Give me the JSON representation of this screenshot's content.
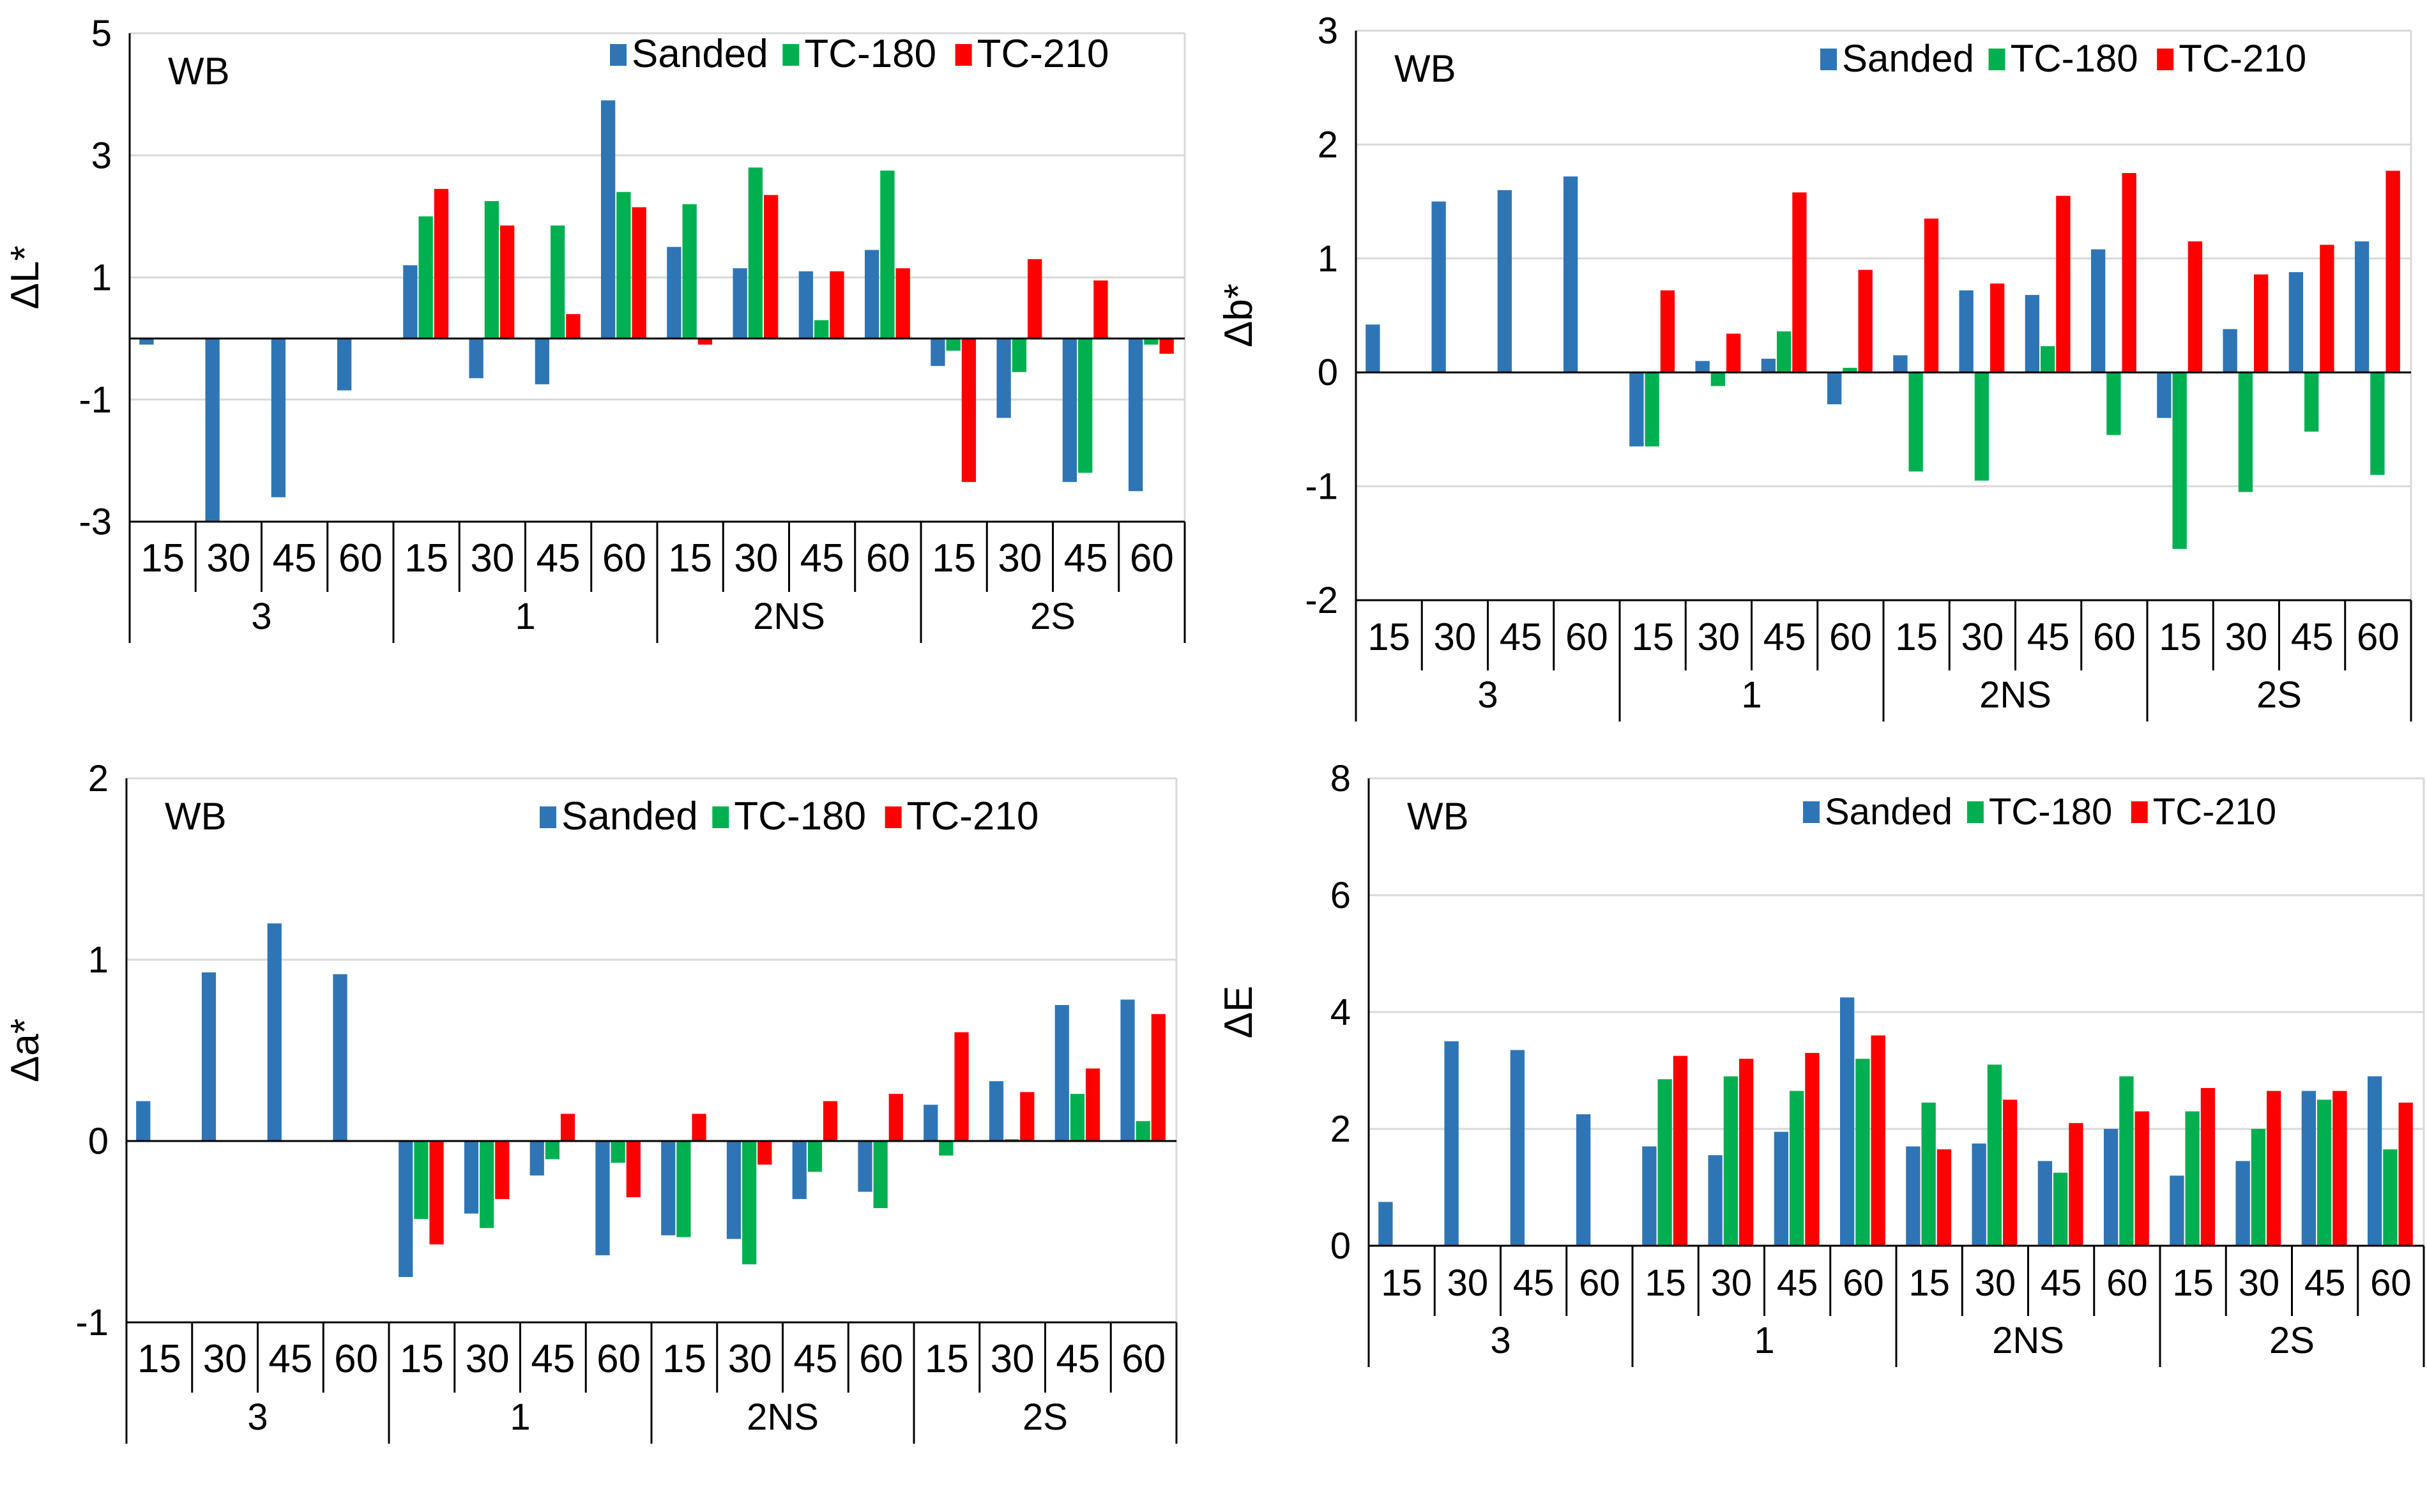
{
  "legend_labels": [
    "Sanded",
    "TC-180",
    "TC-210"
  ],
  "colors": {
    "Sanded": "#2E75B6",
    "TC-180": "#00B050",
    "TC-210": "#FF0000",
    "grid": "#D9D9D9",
    "axis": "#000000"
  },
  "chart_data": [
    {
      "type": "bar",
      "panel": "top-left",
      "title": "WB",
      "ylabel": "ΔL*",
      "ylim": [
        -3,
        5
      ],
      "yticks": [
        -3,
        -1,
        1,
        3,
        5
      ],
      "legend": "top-right",
      "groups": [
        "3",
        "1",
        "2NS",
        "2S"
      ],
      "subcategories": [
        "15",
        "30",
        "45",
        "60"
      ],
      "series": [
        {
          "name": "Sanded",
          "values": [
            -0.1,
            -3.0,
            -2.6,
            -0.85,
            1.2,
            -0.65,
            -0.75,
            3.9,
            1.5,
            1.15,
            1.1,
            1.45,
            -0.45,
            -1.3,
            -2.35,
            -2.5
          ]
        },
        {
          "name": "TC-180",
          "values": [
            null,
            null,
            null,
            null,
            2.0,
            2.25,
            1.85,
            2.4,
            2.2,
            2.8,
            0.3,
            2.75,
            -0.2,
            -0.55,
            -2.2,
            -0.1
          ]
        },
        {
          "name": "TC-210",
          "values": [
            null,
            null,
            null,
            null,
            2.45,
            1.85,
            0.4,
            2.15,
            -0.1,
            2.35,
            1.1,
            1.15,
            -2.35,
            1.3,
            0.95,
            -0.25
          ]
        }
      ]
    },
    {
      "type": "bar",
      "panel": "top-right",
      "title": "WB",
      "ylabel": "Δb*",
      "ylim": [
        -2,
        3
      ],
      "yticks": [
        -2,
        -1,
        0,
        1,
        2,
        3
      ],
      "legend": "top-right",
      "groups": [
        "3",
        "1",
        "2NS",
        "2S"
      ],
      "subcategories": [
        "15",
        "30",
        "45",
        "60"
      ],
      "series": [
        {
          "name": "Sanded",
          "values": [
            0.42,
            1.5,
            1.6,
            1.72,
            -0.65,
            0.1,
            0.12,
            -0.28,
            0.15,
            0.72,
            0.68,
            1.08,
            -0.4,
            0.38,
            0.88,
            1.15
          ]
        },
        {
          "name": "TC-180",
          "values": [
            null,
            null,
            null,
            null,
            -0.65,
            -0.12,
            0.36,
            0.04,
            -0.87,
            -0.95,
            0.23,
            -0.55,
            -1.55,
            -1.05,
            -0.52,
            -0.9
          ]
        },
        {
          "name": "TC-210",
          "values": [
            null,
            null,
            null,
            null,
            0.72,
            0.34,
            1.58,
            0.9,
            1.35,
            0.78,
            1.55,
            1.75,
            1.15,
            0.86,
            1.12,
            1.77
          ]
        }
      ]
    },
    {
      "type": "bar",
      "panel": "bottom-left",
      "title": "WB",
      "ylabel": "Δa*",
      "ylim": [
        -1,
        2
      ],
      "yticks": [
        -1,
        0,
        1,
        2
      ],
      "legend": "top-right",
      "groups": [
        "3",
        "1",
        "2NS",
        "2S"
      ],
      "subcategories": [
        "15",
        "30",
        "45",
        "60"
      ],
      "series": [
        {
          "name": "Sanded",
          "values": [
            0.22,
            0.93,
            1.2,
            0.92,
            -0.75,
            -0.4,
            -0.19,
            -0.63,
            -0.52,
            -0.54,
            -0.32,
            -0.28,
            0.2,
            0.33,
            0.75,
            0.78
          ]
        },
        {
          "name": "TC-180",
          "values": [
            null,
            null,
            null,
            null,
            -0.43,
            -0.48,
            -0.1,
            -0.12,
            -0.53,
            -0.68,
            -0.17,
            -0.37,
            -0.08,
            0.01,
            0.26,
            0.11
          ]
        },
        {
          "name": "TC-210",
          "values": [
            null,
            null,
            null,
            null,
            -0.57,
            -0.32,
            0.15,
            -0.31,
            0.15,
            -0.13,
            0.22,
            0.26,
            0.6,
            0.27,
            0.4,
            0.7
          ]
        }
      ]
    },
    {
      "type": "bar",
      "panel": "bottom-right",
      "title": "WB",
      "ylabel": "ΔE",
      "ylim": [
        0,
        8
      ],
      "yticks": [
        0,
        2,
        4,
        6,
        8
      ],
      "legend": "top-right",
      "groups": [
        "3",
        "1",
        "2NS",
        "2S"
      ],
      "subcategories": [
        "15",
        "30",
        "45",
        "60"
      ],
      "series": [
        {
          "name": "Sanded",
          "values": [
            0.75,
            3.5,
            3.35,
            2.25,
            1.7,
            1.55,
            1.95,
            4.25,
            1.7,
            1.75,
            1.45,
            2.0,
            1.2,
            1.45,
            2.65,
            2.9
          ]
        },
        {
          "name": "TC-180",
          "values": [
            null,
            null,
            null,
            null,
            2.85,
            2.9,
            2.65,
            3.2,
            2.45,
            3.1,
            1.25,
            2.9,
            2.3,
            2.0,
            2.5,
            1.65
          ]
        },
        {
          "name": "TC-210",
          "values": [
            null,
            null,
            null,
            null,
            3.25,
            3.2,
            3.3,
            3.6,
            1.65,
            2.5,
            2.1,
            2.3,
            2.7,
            2.65,
            2.65,
            2.45
          ]
        }
      ]
    }
  ]
}
